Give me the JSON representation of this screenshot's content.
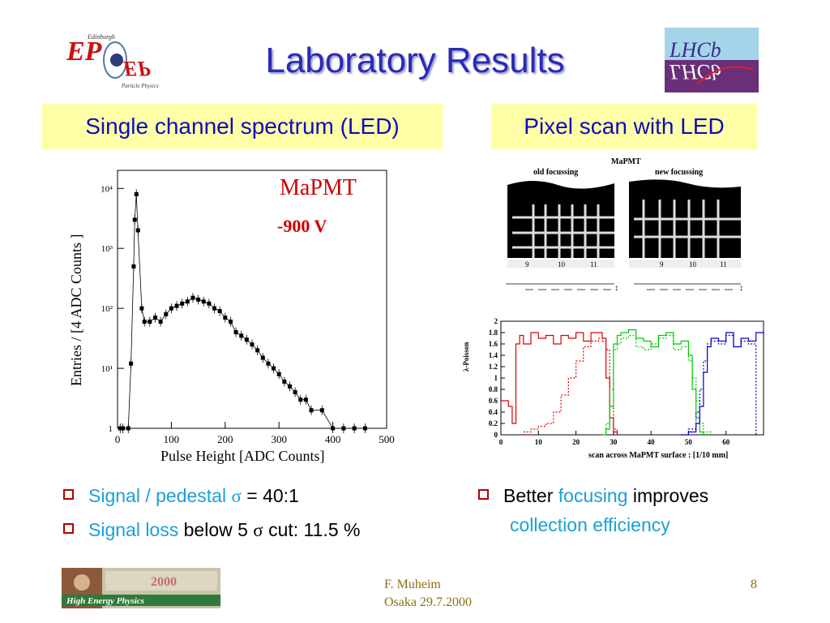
{
  "slide": {
    "title": "Laboratory Results",
    "page_number": "8",
    "footer_author": "F. Muheim",
    "footer_event": "Osaka 29.7.2000"
  },
  "logos": {
    "left": {
      "top_text": "Edinburgh",
      "main_text": "EP",
      "bottom_text": "Particle Physics"
    },
    "right": {
      "text": "LHCb"
    },
    "footer_banner": {
      "text": "High Energy Physics",
      "top_text": "2000"
    }
  },
  "left_panel": {
    "heading": "Single channel spectrum (LED)",
    "plot": {
      "label_device": "MaPMT",
      "label_voltage": "-900 V",
      "ylabel": "Entries / [4 ADC Counts ]",
      "xlabel": "Pulse Height  [ADC Counts]",
      "x_ticks": [
        "0",
        "100",
        "200",
        "300",
        "400",
        "500"
      ],
      "y_ticks": [
        "1",
        "10¹",
        "10²",
        "10³",
        "10⁴"
      ],
      "colors": {
        "device": "#cc0000",
        "voltage": "#cc0000"
      }
    },
    "bullets": [
      {
        "part1": "Signal / pedestal ",
        "sigma": "σ",
        "part2": " = 40:1"
      },
      {
        "part1": "Signal loss",
        "part2": " below 5 ",
        "sigma": "σ",
        "part3": " cut: 11.5 %"
      }
    ]
  },
  "right_panel": {
    "heading": "Pixel scan with LED",
    "scan_figure": {
      "title": "MaPMT",
      "left_label": "old focussing",
      "right_label": "new focussing",
      "pixel_labels_left": [
        "9",
        "10",
        "11"
      ],
      "pixel_labels_right": [
        "9",
        "10",
        "11"
      ]
    },
    "bullet": {
      "part1": "Better ",
      "part2": "focusing",
      "part3": " improves",
      "part4": "collection efficiency"
    }
  },
  "chart_data": [
    {
      "type": "scatter",
      "title": "",
      "xlabel": "Pulse Height  [ADC Counts]",
      "ylabel": "Entries / [4 ADC Counts ]",
      "xlim": [
        0,
        500
      ],
      "ylim": [
        1,
        20000
      ],
      "y_scale": "log",
      "series": [
        {
          "x": [
            5,
            10,
            20,
            25,
            30,
            32,
            35,
            38,
            45,
            50,
            60,
            70,
            80,
            90,
            100,
            110,
            120,
            130,
            140,
            150,
            160,
            170,
            180,
            190,
            200,
            210,
            220,
            230,
            240,
            250,
            260,
            270,
            280,
            290,
            300,
            310,
            320,
            330,
            340,
            350,
            360,
            380,
            400,
            420,
            440,
            460
          ],
          "y": [
            1,
            1,
            1,
            12,
            500,
            3000,
            8000,
            2000,
            100,
            60,
            60,
            70,
            60,
            80,
            100,
            110,
            120,
            130,
            150,
            140,
            130,
            120,
            100,
            90,
            70,
            60,
            40,
            35,
            30,
            25,
            20,
            15,
            12,
            10,
            8,
            6,
            5,
            4,
            3,
            3,
            2,
            2,
            1,
            1,
            1,
            1
          ]
        }
      ]
    },
    {
      "type": "line",
      "title": "",
      "xlabel": "scan across MaPMT surface : [1/10 mm]",
      "ylabel": "λ-Poisson",
      "xlim": [
        0,
        70
      ],
      "ylim": [
        0,
        2
      ],
      "x_ticks": [
        "0",
        "10",
        "20",
        "30",
        "40",
        "50",
        "60"
      ],
      "y_ticks": [
        "0",
        "0.2",
        "0.4",
        "0.6",
        "0.8",
        "1",
        "1.2",
        "1.4",
        "1.6",
        "1.8",
        "2"
      ],
      "series": [
        {
          "color": "#dd0000",
          "style": "solid",
          "x": [
            0,
            1,
            2,
            3,
            4,
            5,
            6,
            8,
            10,
            12,
            14,
            16,
            18,
            20,
            22,
            24,
            26,
            27,
            28,
            29,
            30,
            31
          ],
          "y": [
            0.6,
            0.6,
            0.5,
            0.2,
            1.6,
            1.75,
            1.6,
            1.8,
            1.7,
            1.75,
            1.6,
            1.75,
            1.7,
            1.8,
            1.65,
            1.8,
            1.8,
            1.7,
            1.0,
            0.3,
            0.05,
            0
          ]
        },
        {
          "color": "#dd0000",
          "style": "dotted",
          "x": [
            6,
            8,
            10,
            12,
            14,
            16,
            18,
            20,
            22,
            24,
            26,
            27,
            28,
            29,
            30,
            31
          ],
          "y": [
            0.05,
            0.1,
            0.15,
            0.2,
            0.4,
            0.7,
            1.0,
            1.3,
            1.55,
            1.65,
            1.7,
            1.65,
            1.5,
            0.5,
            0.1,
            0
          ]
        },
        {
          "color": "#00cc00",
          "style": "solid",
          "x": [
            27,
            28,
            29,
            30,
            31,
            32,
            34,
            36,
            38,
            40,
            42,
            44,
            46,
            48,
            50,
            51,
            52,
            53,
            54
          ],
          "y": [
            0,
            0.1,
            0.5,
            1.6,
            1.75,
            1.8,
            1.85,
            1.7,
            1.65,
            1.55,
            1.75,
            1.8,
            1.6,
            1.65,
            1.4,
            0.8,
            0.3,
            0.05,
            0
          ]
        },
        {
          "color": "#00cc00",
          "style": "dotted",
          "x": [
            27,
            28,
            29,
            30,
            31,
            32,
            34,
            36,
            38,
            40,
            42,
            44,
            46,
            48,
            50,
            51,
            52,
            53,
            54,
            56
          ],
          "y": [
            0,
            0.2,
            0.8,
            1.5,
            1.6,
            1.7,
            1.75,
            1.55,
            1.5,
            1.6,
            1.7,
            1.75,
            1.5,
            1.55,
            1.3,
            1.0,
            0.6,
            0.2,
            0.05,
            0
          ]
        },
        {
          "color": "#0000cc",
          "style": "solid",
          "x": [
            48,
            50,
            52,
            53,
            54,
            55,
            56,
            58,
            60,
            62,
            64,
            66,
            68,
            70
          ],
          "y": [
            0,
            0.05,
            0.2,
            0.5,
            1.1,
            1.55,
            1.7,
            1.65,
            1.8,
            1.55,
            1.7,
            1.65,
            1.8,
            1.75
          ]
        },
        {
          "color": "#0000cc",
          "style": "dotted",
          "x": [
            48,
            50,
            52,
            53,
            54,
            55,
            56,
            58,
            60,
            62,
            64,
            66,
            68
          ],
          "y": [
            0,
            0.1,
            0.4,
            0.8,
            1.3,
            1.6,
            1.65,
            1.6,
            1.75,
            1.55,
            1.65,
            1.6,
            0
          ]
        }
      ]
    }
  ]
}
